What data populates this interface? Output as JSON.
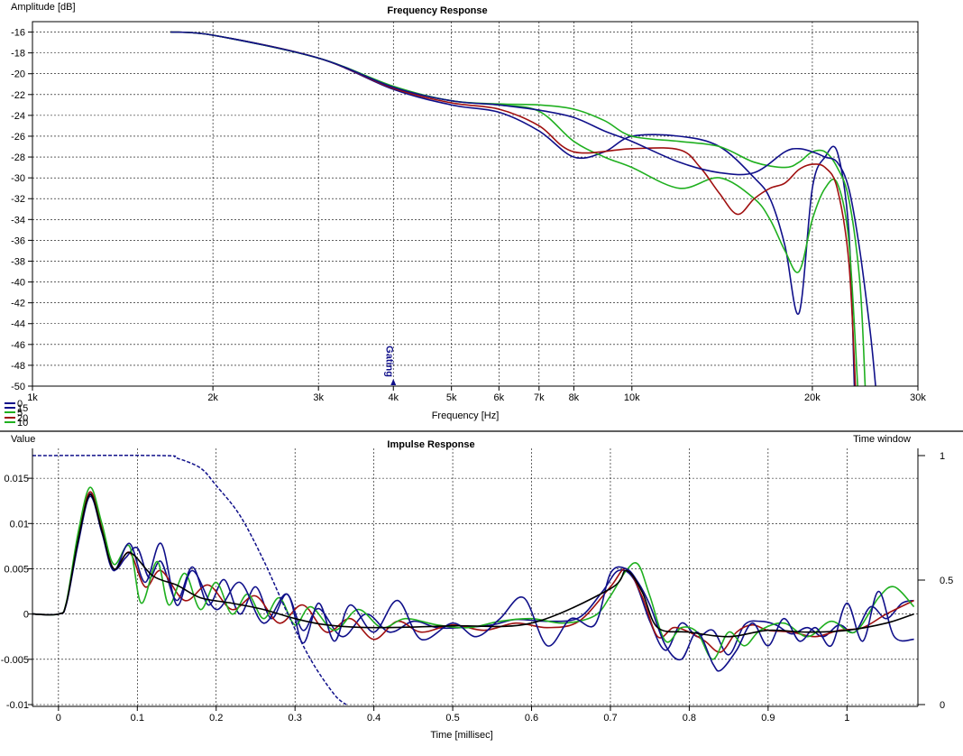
{
  "chart_data": [
    {
      "type": "line",
      "title": "Frequency Response",
      "xlabel": "Frequency [Hz]",
      "ylabel": "Amplitude [dB]",
      "x_scale": "log",
      "xlim": [
        1000,
        30000
      ],
      "ylim": [
        -50,
        -15
      ],
      "x_ticks": [
        1000,
        2000,
        3000,
        4000,
        5000,
        6000,
        7000,
        8000,
        10000,
        20000,
        30000
      ],
      "x_tick_labels": [
        "1k",
        "2k",
        "3k",
        "4k",
        "5k",
        "6k",
        "7k",
        "8k",
        "10k",
        "20k",
        "30k"
      ],
      "y_ticks": [
        -16,
        -18,
        -20,
        -22,
        -24,
        -26,
        -28,
        -30,
        -32,
        -34,
        -36,
        -38,
        -40,
        -42,
        -44,
        -46,
        -48,
        -50
      ],
      "y_tick_labels": [
        "-16",
        "-18",
        "-20",
        "-22",
        "-24",
        "-26",
        "-28",
        "-30",
        "-32",
        "-34",
        "-36",
        "-38",
        "-40",
        "-42",
        "-44",
        "-46",
        "-48",
        "-50"
      ],
      "grid": true,
      "marker": {
        "label": "Gating",
        "x": 4000
      },
      "legend_labels": [
        "0",
        "15",
        "5",
        "20",
        "10"
      ],
      "series": [
        {
          "color": "#10108a",
          "x": [
            1700,
            2000,
            3000,
            4000,
            5000,
            6000,
            7000,
            8000,
            9000,
            10000,
            12000,
            14000,
            16000,
            17000,
            18000,
            19000,
            20000,
            21000,
            22000,
            23000,
            23500
          ],
          "y": [
            -16,
            -16.3,
            -18.5,
            -21.5,
            -23,
            -23.7,
            -25.5,
            -28,
            -27.5,
            -26,
            -26,
            -27,
            -30,
            -32,
            -36.5,
            -43,
            -31,
            -28,
            -27.5,
            -35,
            -50
          ]
        },
        {
          "color": "#20b020",
          "x": [
            1700,
            2000,
            3000,
            4000,
            5000,
            6000,
            7000,
            8000,
            9000,
            10000,
            12000,
            14000,
            16000,
            17000,
            18000,
            19000,
            20000,
            21000,
            22000,
            23000,
            23800
          ],
          "y": [
            -16,
            -16.3,
            -18.5,
            -21.3,
            -22.6,
            -23,
            -23.6,
            -26.5,
            -28,
            -29,
            -31,
            -30,
            -32,
            -34,
            -37,
            -39,
            -34,
            -31,
            -30.5,
            -36,
            -50
          ]
        },
        {
          "color": "#a01010",
          "x": [
            1700,
            2000,
            3000,
            4000,
            5000,
            6000,
            7000,
            8000,
            10000,
            12000,
            13000,
            14000,
            15000,
            16000,
            17000,
            18000,
            19000,
            20000,
            21000,
            22000,
            23000,
            23600
          ],
          "y": [
            -16,
            -16.3,
            -18.5,
            -21.4,
            -22.8,
            -23.4,
            -25,
            -27.5,
            -27.2,
            -27.3,
            -29,
            -31.5,
            -33.5,
            -32,
            -31,
            -30.5,
            -29.2,
            -28.7,
            -29,
            -31,
            -38,
            -50
          ]
        },
        {
          "color": "#20b020",
          "x": [
            1700,
            2000,
            3000,
            4000,
            5000,
            6000,
            7000,
            8000,
            9000,
            10000,
            12000,
            14000,
            16000,
            18000,
            19000,
            20000,
            21000,
            22000,
            23000,
            24000,
            24500
          ],
          "y": [
            -16,
            -16.3,
            -18.5,
            -21.2,
            -22.6,
            -22.9,
            -23,
            -23.4,
            -24.5,
            -26,
            -26.5,
            -27,
            -28.5,
            -29,
            -28.5,
            -27.5,
            -27.5,
            -29,
            -32,
            -40,
            -50
          ]
        },
        {
          "color": "#10108a",
          "x": [
            1700,
            2000,
            3000,
            4000,
            5000,
            6000,
            7000,
            8000,
            9000,
            10000,
            12000,
            14000,
            16000,
            18000,
            19000,
            20000,
            21000,
            22000,
            23000,
            24000,
            25000,
            25500
          ],
          "y": [
            -16,
            -16.3,
            -18.5,
            -21.3,
            -22.6,
            -23,
            -23.5,
            -24.2,
            -25.5,
            -26.5,
            -28.5,
            -29.5,
            -29.5,
            -27.5,
            -27.2,
            -27.5,
            -28,
            -28.5,
            -31,
            -37,
            -45,
            -50
          ]
        }
      ]
    },
    {
      "type": "line",
      "title": "Impulse Response",
      "xlabel": "Time [millisec]",
      "ylabel": "Value",
      "y2label": "Time window",
      "xlim": [
        -0.033,
        1.09
      ],
      "ylim": [
        -0.0102,
        0.0183
      ],
      "y2lim": [
        0,
        1
      ],
      "x_ticks": [
        0,
        0.1,
        0.2,
        0.3,
        0.4,
        0.5,
        0.6,
        0.7,
        0.8,
        0.9,
        1
      ],
      "x_tick_labels": [
        "0",
        "0.1",
        "0.2",
        "0.3",
        "0.4",
        "0.5",
        "0.6",
        "0.7",
        "0.8",
        "0.9",
        "1"
      ],
      "y_ticks": [
        0.015,
        0.01,
        0.005,
        0,
        -0.005,
        -0.01
      ],
      "y_tick_labels": [
        "0.015",
        "0.01",
        "0.005",
        "0",
        "-0.005",
        "-0.01"
      ],
      "y2_ticks": [
        1,
        0.5,
        0
      ],
      "y2_tick_labels": [
        "1",
        "0.5",
        "0"
      ],
      "grid": true,
      "window": {
        "color": "#10108a",
        "dashed": true,
        "axis": "y2",
        "x": [
          -0.033,
          0.13,
          0.15,
          0.18,
          0.2,
          0.23,
          0.26,
          0.29,
          0.32,
          0.35,
          0.365
        ],
        "y": [
          1,
          1,
          0.99,
          0.95,
          0.88,
          0.76,
          0.58,
          0.37,
          0.18,
          0.04,
          0
        ]
      },
      "series": [
        {
          "color": "#10108a",
          "x": [
            -0.033,
            0,
            0.01,
            0.025,
            0.04,
            0.055,
            0.07,
            0.085,
            0.1,
            0.115,
            0.13,
            0.15,
            0.17,
            0.19,
            0.21,
            0.23,
            0.25,
            0.27,
            0.29,
            0.31,
            0.33,
            0.36,
            0.39,
            0.42,
            0.45,
            0.48,
            0.51,
            0.55,
            0.58,
            0.62,
            0.66,
            0.69,
            0.71,
            0.73,
            0.75,
            0.77,
            0.79,
            0.81,
            0.83,
            0.85,
            0.87,
            0.89,
            0.91,
            0.93,
            0.95,
            0.97,
            0.99,
            1.01,
            1.03,
            1.05,
            1.07,
            1.085
          ],
          "y": [
            0,
            0,
            0.0012,
            0.008,
            0.0133,
            0.009,
            0.005,
            0.0062,
            0.0073,
            0.004,
            0.0058,
            0.0015,
            0.0052,
            0.001,
            0.0038,
            0,
            0.003,
            -0.0005,
            0.0022,
            -0.0018,
            0.0006,
            -0.0025,
            0,
            -0.002,
            -0.0008,
            -0.0015,
            -0.0015,
            -0.0012,
            -0.0006,
            -0.0008,
            -0.0004,
            0.0025,
            0.0048,
            0.0038,
            -0.0008,
            -0.004,
            -0.001,
            -0.0025,
            -0.0018,
            -0.0045,
            -0.0012,
            -0.0008,
            -0.0012,
            -0.0022,
            -0.0015,
            -0.0025,
            -0.0012,
            -0.002,
            0.0008,
            -0.0005,
            0.0012,
            0.0015
          ]
        },
        {
          "color": "#a01010",
          "x": [
            -0.033,
            0,
            0.01,
            0.025,
            0.04,
            0.055,
            0.07,
            0.09,
            0.11,
            0.13,
            0.16,
            0.19,
            0.22,
            0.25,
            0.28,
            0.31,
            0.34,
            0.37,
            0.4,
            0.43,
            0.46,
            0.5,
            0.54,
            0.58,
            0.62,
            0.66,
            0.7,
            0.72,
            0.74,
            0.76,
            0.78,
            0.8,
            0.82,
            0.84,
            0.86,
            0.88,
            0.9,
            0.93,
            0.96,
            0.99,
            1.02,
            1.05,
            1.085
          ],
          "y": [
            0,
            0,
            0.0012,
            0.0085,
            0.0135,
            0.0095,
            0.005,
            0.0068,
            0.003,
            0.0048,
            0.0015,
            0.0032,
            0.0005,
            0.002,
            -0.001,
            0.001,
            -0.002,
            -0.0005,
            -0.0028,
            -0.0008,
            -0.002,
            -0.0012,
            -0.0018,
            -0.001,
            -0.0015,
            -0.0008,
            0.003,
            0.005,
            0.002,
            -0.0025,
            -0.0015,
            -0.002,
            -0.003,
            -0.0042,
            -0.002,
            -0.0012,
            -0.0018,
            -0.002,
            -0.0025,
            -0.0018,
            -0.0015,
            0,
            0.0015
          ]
        },
        {
          "color": "#20b020",
          "x": [
            -0.033,
            0,
            0.01,
            0.025,
            0.04,
            0.055,
            0.07,
            0.09,
            0.105,
            0.125,
            0.14,
            0.16,
            0.18,
            0.2,
            0.22,
            0.24,
            0.26,
            0.28,
            0.3,
            0.32,
            0.35,
            0.38,
            0.41,
            0.44,
            0.48,
            0.52,
            0.56,
            0.6,
            0.64,
            0.68,
            0.7,
            0.72,
            0.735,
            0.75,
            0.77,
            0.79,
            0.81,
            0.83,
            0.85,
            0.87,
            0.89,
            0.92,
            0.95,
            0.98,
            1.01,
            1.04,
            1.06,
            1.085
          ],
          "y": [
            0,
            0,
            0.0013,
            0.009,
            0.014,
            0.01,
            0.0055,
            0.0075,
            0.0012,
            0.0058,
            0.001,
            0.0045,
            0.0005,
            0.0035,
            0,
            0.0022,
            -0.0005,
            0.0018,
            -0.0012,
            0.0008,
            -0.0018,
            0.0005,
            -0.0015,
            -0.0005,
            -0.0012,
            -0.0015,
            -0.0008,
            -0.0005,
            -0.001,
            -0.0002,
            0.002,
            0.0048,
            0.0055,
            0.002,
            -0.003,
            -0.0015,
            -0.002,
            -0.005,
            -0.002,
            -0.0035,
            -0.0018,
            -0.001,
            -0.0025,
            -0.0008,
            -0.002,
            0.0018,
            0.003,
            0.0008
          ]
        },
        {
          "color": "#10108a",
          "x": [
            -0.033,
            0,
            0.01,
            0.025,
            0.04,
            0.055,
            0.07,
            0.09,
            0.11,
            0.13,
            0.15,
            0.17,
            0.2,
            0.23,
            0.26,
            0.29,
            0.31,
            0.33,
            0.35,
            0.37,
            0.4,
            0.43,
            0.46,
            0.5,
            0.53,
            0.56,
            0.59,
            0.62,
            0.65,
            0.68,
            0.7,
            0.72,
            0.735,
            0.75,
            0.77,
            0.79,
            0.81,
            0.83,
            0.84,
            0.86,
            0.88,
            0.9,
            0.92,
            0.94,
            0.96,
            0.98,
            1,
            1.02,
            1.04,
            1.06,
            1.085
          ],
          "y": [
            0,
            0,
            0.0011,
            0.0078,
            0.013,
            0.009,
            0.0048,
            0.0078,
            0.0035,
            0.0078,
            0.001,
            0.0048,
            0.0005,
            0.0035,
            -0.001,
            0.0022,
            -0.0032,
            0.0012,
            -0.003,
            0.001,
            -0.002,
            0.0015,
            -0.0028,
            -0.001,
            -0.0025,
            -0.0005,
            0.0018,
            -0.0035,
            -0.0005,
            -0.0012,
            0.0045,
            0.005,
            0.0035,
            0.001,
            -0.0035,
            -0.005,
            -0.002,
            -0.0055,
            -0.0062,
            -0.004,
            -0.001,
            -0.0035,
            -0.0005,
            -0.003,
            -0.0015,
            -0.0035,
            0.0012,
            -0.003,
            0.0025,
            -0.0025,
            -0.0028
          ]
        },
        {
          "color": "#000000",
          "x": [
            -0.033,
            0,
            0.01,
            0.025,
            0.04,
            0.055,
            0.07,
            0.09,
            0.12,
            0.15,
            0.18,
            0.22,
            0.26,
            0.3,
            0.34,
            0.4,
            0.5,
            0.6,
            0.7,
            0.72,
            0.74,
            0.76,
            0.8,
            0.85,
            0.9,
            0.95,
            1,
            1.05,
            1.085
          ],
          "y": [
            0,
            0,
            0.0012,
            0.0082,
            0.0132,
            0.0092,
            0.005,
            0.0068,
            0.0042,
            0.0032,
            0.0018,
            0.0012,
            0.0005,
            -0.0005,
            -0.0012,
            -0.0015,
            -0.0013,
            -0.001,
            0.0028,
            0.0048,
            0.0025,
            -0.0015,
            -0.002,
            -0.0025,
            -0.0018,
            -0.002,
            -0.0018,
            -0.001,
            0
          ]
        }
      ]
    }
  ]
}
